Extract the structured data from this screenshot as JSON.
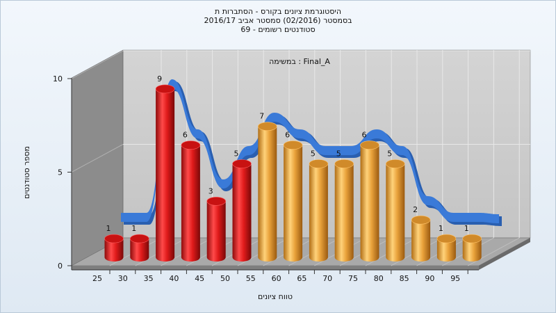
{
  "title_lines": [
    "היסטוגרמת ציונים בקורס - הסתברות ת",
    "בסמסטר  (02/2016)  סמסטר אביב 2016/17",
    "סטודנטים רשומים - 69"
  ],
  "chart_data": {
    "type": "bar",
    "title": "היסטוגרמת ציונים בקורס - הסתברות ת",
    "subtitle": "בסמסטר  (02/2016)  סמסטר אביב 2016/17 / סטודנטים רשומים - 69",
    "annotation": "במשימה : Final_A",
    "xlabel": "טווח ציונים",
    "ylabel": "מספר סטודנטים",
    "ylim": [
      0,
      10
    ],
    "yticks": [
      0,
      5,
      10
    ],
    "categories": [
      "25",
      "30",
      "35",
      "40",
      "45",
      "50",
      "55",
      "60",
      "65",
      "70",
      "75",
      "80",
      "85",
      "90",
      "95"
    ],
    "values": [
      1,
      1,
      9,
      6,
      3,
      5,
      7,
      6,
      5,
      5,
      6,
      5,
      2,
      1,
      1
    ],
    "bar_colors": [
      "red",
      "red",
      "red",
      "red",
      "red",
      "red",
      "orange",
      "orange",
      "orange",
      "orange",
      "orange",
      "orange",
      "orange",
      "orange",
      "orange"
    ],
    "colors": {
      "failing": "#e01b1b",
      "passing": "#e9a23b",
      "trend": "#3a7ad8",
      "wall": "#c8c8c8",
      "side_wall": "#8a8a8a"
    },
    "trend_line": true,
    "grid": true
  }
}
